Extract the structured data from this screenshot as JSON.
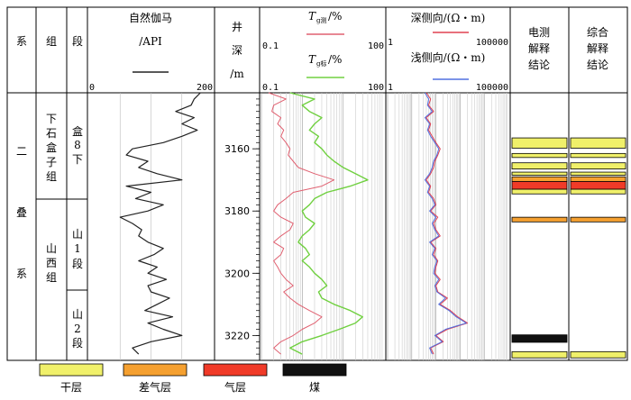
{
  "headers": {
    "system": "系",
    "group": "组",
    "section": "段",
    "gamma": {
      "title": "自然伽马",
      "unit": "/API",
      "min": "0",
      "max": "200"
    },
    "depth": [
      "井",
      "深",
      "/m"
    ],
    "t_upper": {
      "label": "T",
      "sub": "g测",
      "suffix": "/%",
      "min": "0.1",
      "max": "100"
    },
    "t_lower": {
      "label": "T",
      "sub": "g标",
      "suffix": "/%",
      "min": "0.1",
      "max": "100"
    },
    "res_deep": {
      "label": "深侧向/(Ω・m)",
      "min": "1",
      "max": "100000"
    },
    "res_shallow": {
      "label": "浅侧向/(Ω・m)",
      "min": "1",
      "max": "100000"
    },
    "elec": [
      "电测",
      "解释",
      "结论"
    ],
    "comp": [
      "综合",
      "解释",
      "结论"
    ]
  },
  "strata": {
    "system": [
      "二",
      "叠",
      "系"
    ],
    "group_upper": [
      "下",
      "石",
      "盒",
      "子",
      "组"
    ],
    "group_lower": [
      "山",
      "西",
      "组"
    ],
    "section_1": [
      "盒",
      "8",
      "下"
    ],
    "section_2": [
      "山",
      "1",
      "段"
    ],
    "section_3": [
      "山",
      "2",
      "段"
    ]
  },
  "depth_ticks": [
    "3160",
    "3180",
    "3200",
    "3220"
  ],
  "legend": [
    {
      "key": "dry",
      "label": "干层",
      "color": "#f0f06a"
    },
    {
      "key": "poor_gas",
      "label": "差气层",
      "color": "#f5a030"
    },
    {
      "key": "gas",
      "label": "气层",
      "color": "#f03a28"
    },
    {
      "key": "coal",
      "label": "煤",
      "color": "#111111"
    }
  ],
  "colors": {
    "gamma": "#222222",
    "t_upper": "#e06070",
    "t_lower": "#70d040",
    "res_deep": "#e04050",
    "res_shallow": "#5070e0"
  },
  "chart_data": {
    "type": "line",
    "depth_unit": "m",
    "depth_range": [
      3142,
      3228
    ],
    "series": [
      {
        "name": "自然伽马",
        "unit": "API",
        "range": [
          0,
          200
        ],
        "scale": "linear",
        "depth": [
          3142,
          3144,
          3146,
          3148,
          3150,
          3152,
          3154,
          3156,
          3158,
          3160,
          3162,
          3164,
          3166,
          3168,
          3170,
          3172,
          3174,
          3176,
          3178,
          3180,
          3182,
          3184,
          3186,
          3188,
          3190,
          3192,
          3194,
          3196,
          3198,
          3200,
          3202,
          3204,
          3206,
          3208,
          3210,
          3212,
          3214,
          3216,
          3218,
          3220,
          3222,
          3224,
          3226
        ],
        "values": [
          180,
          170,
          165,
          140,
          170,
          150,
          175,
          150,
          120,
          70,
          60,
          95,
          80,
          110,
          150,
          60,
          100,
          75,
          120,
          95,
          50,
          70,
          85,
          80,
          95,
          120,
          105,
          80,
          110,
          95,
          125,
          95,
          100,
          130,
          110,
          90,
          135,
          95,
          120,
          150,
          100,
          70,
          80
        ]
      },
      {
        "name": "Tg测",
        "unit": "%",
        "range": [
          0.1,
          100
        ],
        "scale": "log",
        "depth": [
          3142,
          3144,
          3146,
          3148,
          3150,
          3152,
          3154,
          3156,
          3158,
          3160,
          3162,
          3164,
          3166,
          3168,
          3170,
          3172,
          3174,
          3176,
          3178,
          3180,
          3182,
          3184,
          3186,
          3188,
          3190,
          3192,
          3194,
          3196,
          3198,
          3200,
          3202,
          3204,
          3206,
          3208,
          3210,
          3212,
          3214,
          3216,
          3218,
          3220,
          3222,
          3224,
          3226
        ],
        "values": [
          0.15,
          0.4,
          0.2,
          0.18,
          0.3,
          0.25,
          0.35,
          0.3,
          0.4,
          0.5,
          0.45,
          0.6,
          0.8,
          2,
          6,
          3,
          0.6,
          0.4,
          0.25,
          0.2,
          0.3,
          0.6,
          0.5,
          0.3,
          0.2,
          0.35,
          0.3,
          0.2,
          0.25,
          0.3,
          0.4,
          0.6,
          0.35,
          0.5,
          0.8,
          1.5,
          3,
          2,
          1,
          0.6,
          0.3,
          0.2,
          0.3
        ]
      },
      {
        "name": "Tg标",
        "unit": "%",
        "range": [
          0.1,
          100
        ],
        "scale": "log",
        "depth": [
          3142,
          3144,
          3146,
          3148,
          3150,
          3152,
          3154,
          3156,
          3158,
          3160,
          3162,
          3164,
          3166,
          3168,
          3170,
          3172,
          3174,
          3176,
          3178,
          3180,
          3182,
          3184,
          3186,
          3188,
          3190,
          3192,
          3194,
          3196,
          3198,
          3200,
          3202,
          3204,
          3206,
          3208,
          3210,
          3212,
          3214,
          3216,
          3218,
          3220,
          3222,
          3224,
          3226
        ],
        "values": [
          0.5,
          2,
          1,
          1.5,
          3,
          2,
          1.5,
          2.5,
          2,
          3,
          4,
          6,
          10,
          20,
          40,
          15,
          4,
          2,
          1.5,
          1,
          1.2,
          2,
          1.5,
          1,
          0.8,
          1.2,
          1.5,
          1,
          1.5,
          2,
          3,
          4,
          2.5,
          3,
          6,
          15,
          30,
          20,
          8,
          3,
          1,
          0.5,
          1
        ]
      },
      {
        "name": "深侧向",
        "unit": "Ω・m",
        "range": [
          1,
          100000
        ],
        "scale": "log",
        "depth": [
          3142,
          3144,
          3146,
          3148,
          3150,
          3152,
          3154,
          3156,
          3158,
          3160,
          3162,
          3164,
          3166,
          3168,
          3170,
          3172,
          3174,
          3176,
          3178,
          3180,
          3182,
          3184,
          3186,
          3188,
          3190,
          3192,
          3194,
          3196,
          3198,
          3200,
          3202,
          3204,
          3206,
          3208,
          3210,
          3212,
          3214,
          3216,
          3218,
          3220,
          3222,
          3224,
          3226
        ],
        "values": [
          40,
          60,
          50,
          80,
          40,
          60,
          50,
          70,
          100,
          150,
          120,
          90,
          80,
          60,
          40,
          60,
          50,
          80,
          100,
          60,
          120,
          80,
          100,
          150,
          60,
          100,
          80,
          120,
          100,
          90,
          150,
          100,
          120,
          300,
          150,
          400,
          800,
          2000,
          300,
          100,
          200,
          60,
          80
        ]
      },
      {
        "name": "浅侧向",
        "unit": "Ω・m",
        "range": [
          1,
          100000
        ],
        "scale": "log",
        "depth": [
          3142,
          3144,
          3146,
          3148,
          3150,
          3152,
          3154,
          3156,
          3158,
          3160,
          3162,
          3164,
          3166,
          3168,
          3170,
          3172,
          3174,
          3176,
          3178,
          3180,
          3182,
          3184,
          3186,
          3188,
          3190,
          3192,
          3194,
          3196,
          3198,
          3200,
          3202,
          3204,
          3206,
          3208,
          3210,
          3212,
          3214,
          3216,
          3218,
          3220,
          3222,
          3224,
          3226
        ],
        "values": [
          35,
          50,
          45,
          70,
          35,
          55,
          45,
          60,
          90,
          130,
          110,
          80,
          70,
          55,
          35,
          55,
          45,
          70,
          90,
          55,
          100,
          70,
          90,
          130,
          55,
          90,
          70,
          110,
          90,
          80,
          130,
          90,
          110,
          250,
          130,
          350,
          700,
          1800,
          250,
          90,
          180,
          55,
          70
        ]
      }
    ],
    "interpretation": {
      "electrical": [
        {
          "top": 3156.5,
          "bottom": 3159.8,
          "type": "dry"
        },
        {
          "top": 3161.5,
          "bottom": 3162.8,
          "type": "dry"
        },
        {
          "top": 3164.5,
          "bottom": 3166.5,
          "type": "dry"
        },
        {
          "top": 3167.5,
          "bottom": 3168.5,
          "type": "dry"
        },
        {
          "top": 3169.0,
          "bottom": 3170.5,
          "type": "poor_gas"
        },
        {
          "top": 3170.5,
          "bottom": 3173.0,
          "type": "gas"
        },
        {
          "top": 3173.0,
          "bottom": 3174.5,
          "type": "dry"
        },
        {
          "top": 3182.0,
          "bottom": 3183.5,
          "type": "poor_gas"
        },
        {
          "top": 3219.8,
          "bottom": 3222.2,
          "type": "coal"
        },
        {
          "top": 3225.2,
          "bottom": 3227.2,
          "type": "dry"
        }
      ],
      "comprehensive": [
        {
          "top": 3156.5,
          "bottom": 3159.8,
          "type": "dry"
        },
        {
          "top": 3161.5,
          "bottom": 3162.8,
          "type": "dry"
        },
        {
          "top": 3164.5,
          "bottom": 3166.5,
          "type": "dry"
        },
        {
          "top": 3167.5,
          "bottom": 3168.5,
          "type": "dry"
        },
        {
          "top": 3169.0,
          "bottom": 3170.5,
          "type": "poor_gas"
        },
        {
          "top": 3170.5,
          "bottom": 3173.0,
          "type": "gas"
        },
        {
          "top": 3173.0,
          "bottom": 3174.5,
          "type": "dry"
        },
        {
          "top": 3182.0,
          "bottom": 3183.5,
          "type": "poor_gas"
        },
        {
          "top": 3225.2,
          "bottom": 3227.2,
          "type": "dry"
        }
      ]
    }
  }
}
